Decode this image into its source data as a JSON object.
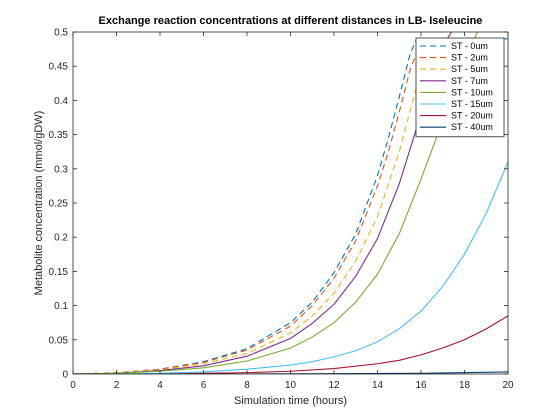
{
  "chart_data": {
    "type": "line",
    "title": "Exchange reaction concentrations at different distances in LB- Iseleucine",
    "xlabel": "Simulation time (hours)",
    "ylabel": "Metabolite concentration (mmol/gDW)",
    "xlim": [
      0,
      20
    ],
    "ylim": [
      0,
      0.5
    ],
    "x_ticks": [
      0,
      2,
      4,
      6,
      8,
      10,
      12,
      14,
      16,
      18,
      20
    ],
    "y_ticks": [
      0,
      0.05,
      0.1,
      0.15,
      0.2,
      0.25,
      0.3,
      0.35,
      0.4,
      0.45,
      0.5
    ],
    "x_tick_labels": [
      "0",
      "2",
      "4",
      "6",
      "8",
      "10",
      "12",
      "14",
      "16",
      "18",
      "20"
    ],
    "y_tick_labels": [
      "0",
      "0.05",
      "0.1",
      "0.15",
      "0.2",
      "0.25",
      "0.3",
      "0.35",
      "0.4",
      "0.45",
      "0.5"
    ],
    "grid": false,
    "legend_position": "top-right",
    "series": [
      {
        "name": "ST - 0um",
        "color": "#0072BD",
        "dash": "dashed",
        "x": [
          0,
          2,
          4,
          6,
          8,
          10,
          11,
          12,
          13,
          14,
          14.5,
          15,
          15.5,
          15.8,
          20
        ],
        "y": [
          0,
          0.002,
          0.007,
          0.018,
          0.037,
          0.075,
          0.105,
          0.148,
          0.205,
          0.29,
          0.345,
          0.405,
          0.468,
          0.49,
          0.49
        ]
      },
      {
        "name": "ST - 2um",
        "color": "#D95319",
        "dash": "dashed",
        "x": [
          0,
          2,
          4,
          6,
          8,
          10,
          11,
          12,
          13,
          14,
          14.5,
          15,
          15.5,
          16,
          20
        ],
        "y": [
          0,
          0.002,
          0.007,
          0.017,
          0.035,
          0.07,
          0.1,
          0.14,
          0.195,
          0.275,
          0.325,
          0.383,
          0.445,
          0.485,
          0.485
        ]
      },
      {
        "name": "ST - 5um",
        "color": "#EDB120",
        "dash": "dashed",
        "x": [
          0,
          2,
          4,
          6,
          8,
          10,
          11,
          12,
          13,
          14,
          15,
          16,
          16.8,
          20
        ],
        "y": [
          0,
          0.002,
          0.006,
          0.015,
          0.03,
          0.06,
          0.085,
          0.118,
          0.165,
          0.23,
          0.325,
          0.445,
          0.49,
          0.49
        ]
      },
      {
        "name": "ST - 7um",
        "color": "#7E2F8E",
        "dash": "solid",
        "x": [
          0,
          2,
          4,
          6,
          8,
          10,
          11,
          12,
          13,
          14,
          15,
          16,
          17,
          17.4
        ],
        "y": [
          0,
          0.001,
          0.005,
          0.012,
          0.026,
          0.052,
          0.074,
          0.102,
          0.143,
          0.198,
          0.278,
          0.38,
          0.48,
          0.5
        ]
      },
      {
        "name": "ST - 10um",
        "color": "#77AC30",
        "dash": "solid",
        "x": [
          0,
          2,
          4,
          6,
          8,
          10,
          11,
          12,
          13,
          14,
          15,
          16,
          17,
          18,
          18.6
        ],
        "y": [
          0,
          0.001,
          0.004,
          0.009,
          0.019,
          0.038,
          0.054,
          0.075,
          0.105,
          0.146,
          0.205,
          0.285,
          0.37,
          0.46,
          0.5
        ]
      },
      {
        "name": "ST - 15um",
        "color": "#4DBEEE",
        "dash": "solid",
        "x": [
          0,
          2,
          4,
          6,
          8,
          10,
          11,
          12,
          13,
          14,
          15,
          16,
          17,
          18,
          19,
          20
        ],
        "y": [
          0,
          0,
          0.001,
          0.003,
          0.007,
          0.013,
          0.018,
          0.025,
          0.034,
          0.047,
          0.066,
          0.092,
          0.128,
          0.175,
          0.235,
          0.31
        ]
      },
      {
        "name": "ST - 20um",
        "color": "#A2142F",
        "dash": "solid",
        "x": [
          0,
          4,
          6,
          8,
          10,
          12,
          14,
          15,
          16,
          17,
          18,
          19,
          20
        ],
        "y": [
          0,
          0,
          0.001,
          0.002,
          0.004,
          0.008,
          0.015,
          0.02,
          0.028,
          0.038,
          0.05,
          0.066,
          0.085
        ]
      },
      {
        "name": "ST - 40um",
        "color": "#0B3D6E",
        "dash": "solid",
        "x": [
          0,
          8,
          12,
          16,
          20
        ],
        "y": [
          0,
          0,
          0.0005,
          0.001,
          0.003
        ]
      }
    ]
  }
}
